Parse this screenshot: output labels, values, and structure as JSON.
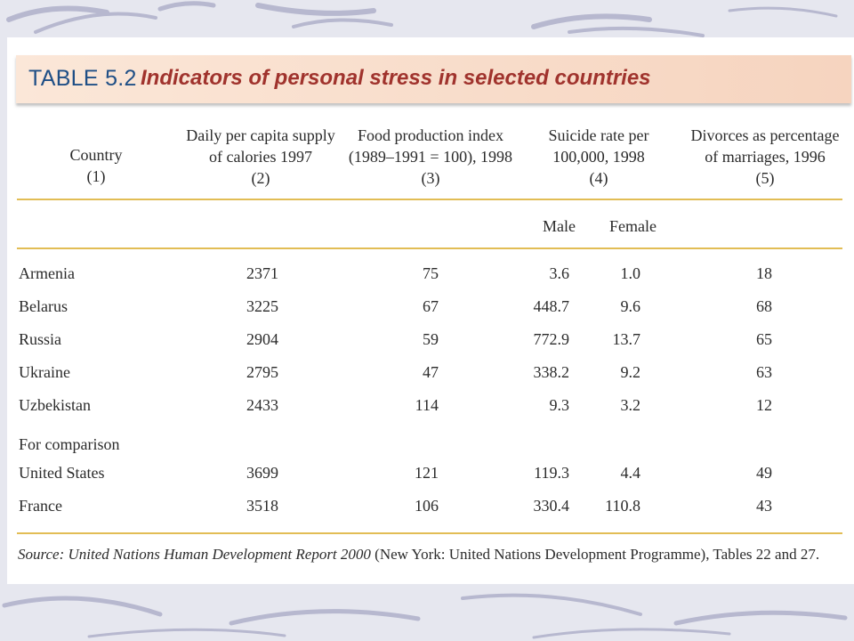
{
  "table": {
    "label": "TABLE 5.2",
    "title": "Indicators of personal stress in selected countries",
    "headers": [
      [
        "Country",
        "(1)"
      ],
      [
        "Daily per capita supply",
        "of calories 1997",
        "(2)"
      ],
      [
        "Food production index",
        "(1989–1991 = 100), 1998",
        "(3)"
      ],
      [
        "Suicide rate per",
        "100,000, 1998",
        "(4)"
      ],
      [
        "Divorces as percentage",
        "of marriages, 1996",
        "(5)"
      ]
    ],
    "subheaders": {
      "male": "Male",
      "female": "Female"
    },
    "rows": [
      [
        "Armenia",
        "2371",
        "75",
        "3.6",
        "1.0",
        "18"
      ],
      [
        "Belarus",
        "3225",
        "67",
        "448.7",
        "9.6",
        "68"
      ],
      [
        "Russia",
        "2904",
        "59",
        "772.9",
        "13.7",
        "65"
      ],
      [
        "Ukraine",
        "2795",
        "47",
        "338.2",
        "9.2",
        "63"
      ],
      [
        "Uzbekistan",
        "2433",
        "114",
        "9.3",
        "3.2",
        "12"
      ]
    ],
    "comparison_label": "For comparison",
    "comparison_rows": [
      [
        "United States",
        "3699",
        "121",
        "119.3",
        "4.4",
        "49"
      ],
      [
        "France",
        "3518",
        "106",
        "330.4",
        "110.8",
        "43"
      ]
    ],
    "source": {
      "prefix": "Source: United Nations Human Development Report 2000",
      "rest": " (New York: United Nations Development Programme), Tables 22 and 27."
    }
  },
  "colors": {
    "label": "#1f4f86",
    "title": "#a0332d",
    "rule": "#e2bd55",
    "title_bar": "#f8dcc8",
    "background": "#e6e7ef"
  }
}
